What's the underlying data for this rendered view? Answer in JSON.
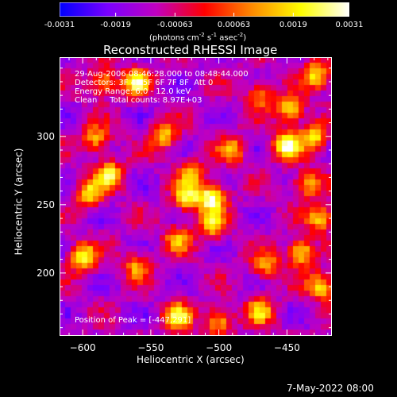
{
  "chart_data": {
    "type": "heatmap",
    "title": "Reconstructed RHESSI Image",
    "xlabel": "Heliocentric X (arcsec)",
    "ylabel": "Heliocentric Y (arcsec)",
    "xlim": [
      -617,
      -417
    ],
    "ylim": [
      154,
      358
    ],
    "x_ticks": [
      -600,
      -550,
      -500,
      -450
    ],
    "y_ticks": [
      200,
      250,
      300
    ],
    "colorbar": {
      "ticks": [
        "-0.0031",
        "-0.0019",
        "-0.00063",
        "0.00063",
        "0.0019",
        "0.0031"
      ],
      "tick_values": [
        -0.0031,
        -0.0019,
        -0.00063,
        0.00063,
        0.0019,
        0.0031
      ],
      "range": [
        -0.0031,
        0.0031
      ],
      "unit_parts": [
        "(photons cm",
        "-2",
        " s",
        "-1",
        " asec",
        "-2",
        ")"
      ],
      "stops": [
        "#0000ff",
        "#7a00ff",
        "#c000c0",
        "#ff0000",
        "#ff8c00",
        "#ffff00",
        "#ffffff"
      ]
    },
    "annotations": {
      "time": "29-Aug-2006 08:46:28.000 to 08:48:44.000",
      "detectors": "Detectors: 3F 4F 5F 6F 7F 8F  Att 0",
      "energy": "Energy Range: 6.0 - 12.0 keV",
      "clean": "Clean     Total counts: 8.97E+03",
      "peak": "Position of Peak = [-447,291]"
    },
    "peak": [
      -447,
      291
    ],
    "sources": [
      {
        "x": -560,
        "y": 340,
        "amp": 0.0024
      },
      {
        "x": -585,
        "y": 340,
        "amp": 0.0016
      },
      {
        "x": -590,
        "y": 298,
        "amp": 0.0015
      },
      {
        "x": -580,
        "y": 272,
        "amp": 0.0022
      },
      {
        "x": -595,
        "y": 258,
        "amp": 0.0018
      },
      {
        "x": -540,
        "y": 300,
        "amp": 0.0017
      },
      {
        "x": -520,
        "y": 272,
        "amp": 0.0014
      },
      {
        "x": -505,
        "y": 255,
        "amp": 0.003
      },
      {
        "x": -523,
        "y": 255,
        "amp": 0.0022
      },
      {
        "x": -505,
        "y": 235,
        "amp": 0.0016
      },
      {
        "x": -600,
        "y": 212,
        "amp": 0.0025
      },
      {
        "x": -560,
        "y": 205,
        "amp": 0.0013
      },
      {
        "x": -530,
        "y": 225,
        "amp": 0.0012
      },
      {
        "x": -530,
        "y": 168,
        "amp": 0.002
      },
      {
        "x": -500,
        "y": 165,
        "amp": 0.0017
      },
      {
        "x": -470,
        "y": 172,
        "amp": 0.0015
      },
      {
        "x": -465,
        "y": 205,
        "amp": 0.0013
      },
      {
        "x": -450,
        "y": 293,
        "amp": 0.0031
      },
      {
        "x": -447,
        "y": 320,
        "amp": 0.0022
      },
      {
        "x": -428,
        "y": 345,
        "amp": 0.002
      },
      {
        "x": -430,
        "y": 300,
        "amp": 0.0019
      },
      {
        "x": -435,
        "y": 265,
        "amp": 0.0017
      },
      {
        "x": -425,
        "y": 240,
        "amp": 0.0018
      },
      {
        "x": -440,
        "y": 215,
        "amp": 0.0024
      },
      {
        "x": -425,
        "y": 190,
        "amp": 0.002
      },
      {
        "x": -470,
        "y": 330,
        "amp": 0.0012
      },
      {
        "x": -490,
        "y": 290,
        "amp": 0.0013
      }
    ]
  },
  "footer": {
    "date": "7-May-2022 08:00"
  }
}
